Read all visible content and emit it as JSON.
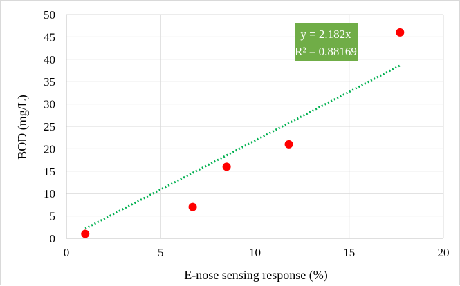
{
  "chart_data": {
    "type": "scatter",
    "xlabel": "E-nose sensing response (%)",
    "ylabel": "BOD (mg/L)",
    "xlim": [
      0,
      20
    ],
    "ylim": [
      0,
      50
    ],
    "x_ticks": [
      "0",
      "5",
      "10",
      "15",
      "20"
    ],
    "y_ticks": [
      "0",
      "5",
      "10",
      "15",
      "20",
      "25",
      "30",
      "35",
      "40",
      "45",
      "50"
    ],
    "grid": true,
    "legend": "none",
    "points": [
      {
        "x": 1.0,
        "y": 1.0
      },
      {
        "x": 6.7,
        "y": 7.0
      },
      {
        "x": 8.5,
        "y": 16.0
      },
      {
        "x": 11.8,
        "y": 21.0
      },
      {
        "x": 17.7,
        "y": 46.0
      }
    ],
    "trendline": {
      "style": "dotted",
      "slope": 2.182,
      "intercept": 0,
      "x_range": [
        1.0,
        17.7
      ],
      "equation": "y = 2.182x",
      "r_squared": "R² = 0.88169"
    },
    "colors": {
      "points": "#ff0000",
      "trendline": "#00b050",
      "equation_box": "#70ad47",
      "grid": "#d9d9d9"
    }
  }
}
